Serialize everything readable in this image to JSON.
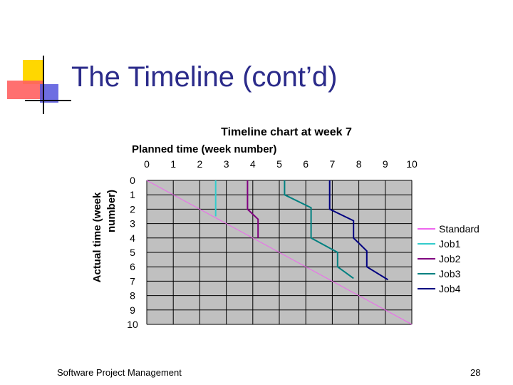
{
  "slide": {
    "title": "The Timeline (cont’d)",
    "footer_left": "Software Project Management",
    "page_number": "28"
  },
  "colors": {
    "title": "#2b2b8a",
    "plot_bg": "#c0c0c0",
    "logo_yellow": "#ffd700",
    "logo_red": "#ff4040",
    "logo_blue": "#4a4ad8"
  },
  "chart_data": {
    "type": "line",
    "title": "Timeline chart at week 7",
    "xlabel": "Planned time (week number)",
    "ylabel": "Actual time (week number)",
    "x_ticks": [
      "0",
      "1",
      "2",
      "3",
      "4",
      "5",
      "6",
      "7",
      "8",
      "9",
      "10"
    ],
    "y_ticks": [
      "0",
      "1",
      "2",
      "3",
      "4",
      "5",
      "6",
      "7",
      "8",
      "9",
      "10"
    ],
    "xlim": [
      0,
      10
    ],
    "ylim": [
      0,
      10
    ],
    "grid": true,
    "legend_position": "right",
    "series": [
      {
        "name": "Standard",
        "color": "#ee66ee",
        "points": [
          [
            0,
            0
          ],
          [
            10,
            10
          ]
        ]
      },
      {
        "name": "Job1",
        "color": "#33cccc",
        "points": [
          [
            2.6,
            0
          ],
          [
            2.6,
            2.5
          ]
        ]
      },
      {
        "name": "Job2",
        "color": "#800080",
        "points": [
          [
            3.8,
            0
          ],
          [
            3.8,
            2
          ],
          [
            4.2,
            2.7
          ],
          [
            4.2,
            4
          ]
        ]
      },
      {
        "name": "Job3",
        "color": "#008080",
        "points": [
          [
            5.2,
            0
          ],
          [
            5.2,
            1
          ],
          [
            6.2,
            1.9
          ],
          [
            6.2,
            4
          ],
          [
            7.2,
            5
          ],
          [
            7.2,
            6
          ],
          [
            7.8,
            6.8
          ]
        ]
      },
      {
        "name": "Job4",
        "color": "#000080",
        "points": [
          [
            6.9,
            0
          ],
          [
            6.9,
            2
          ],
          [
            7.8,
            2.8
          ],
          [
            7.8,
            4
          ],
          [
            8.3,
            4.9
          ],
          [
            8.3,
            6
          ],
          [
            9.1,
            6.9
          ]
        ]
      }
    ]
  }
}
